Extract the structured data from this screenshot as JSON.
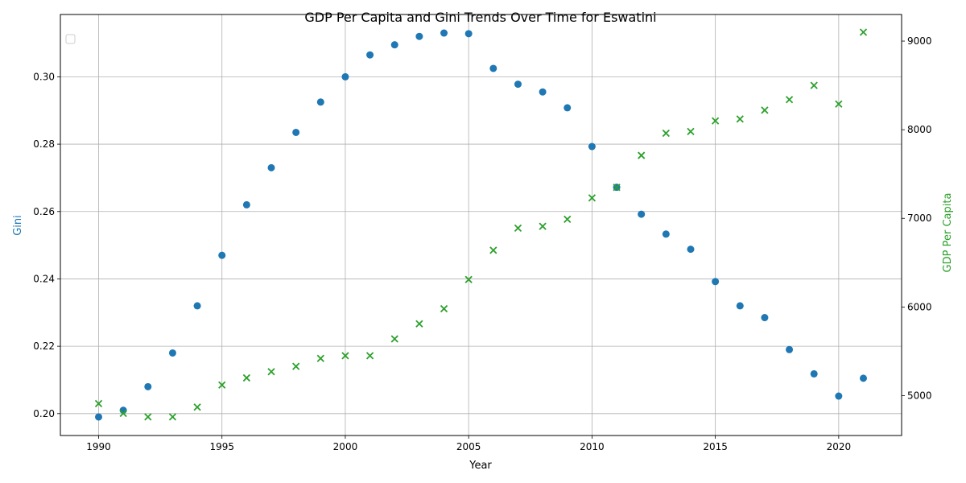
{
  "chart_data": {
    "type": "scatter",
    "title": "GDP Per Capita and Gini Trends Over Time for Eswatini",
    "xlabel": "Year",
    "ylabel_left": "Gini",
    "ylabel_right": "GDP Per Capita",
    "xlim": [
      1988.45,
      1992.55
    ],
    "xticks": [
      1990,
      1995,
      2000,
      2005,
      2010,
      2015,
      2020
    ],
    "ylim_left": [
      0.1935,
      0.3185
    ],
    "yticks_left": [
      "0.20",
      "0.22",
      "0.24",
      "0.26",
      "0.28",
      "0.30"
    ],
    "ylim_right": [
      4550,
      9300
    ],
    "yticks_right": [
      5000,
      6000,
      7000,
      8000,
      9000
    ],
    "grid": true,
    "legend": "top-left",
    "colors": {
      "gini": "#1f77b4",
      "gdp": "#2ca02c"
    },
    "x": [
      1990,
      1991,
      1992,
      1993,
      1994,
      1995,
      1996,
      1997,
      1998,
      1999,
      2000,
      2001,
      2002,
      2003,
      2004,
      2005,
      2006,
      2007,
      2008,
      2009,
      2010,
      2011,
      2012,
      2013,
      2014,
      2015,
      2016,
      2017,
      2018,
      2019,
      2020,
      2021
    ],
    "series": [
      {
        "key": "gini",
        "axis": "left",
        "marker": "circle",
        "values": [
          0.199,
          0.201,
          0.208,
          0.218,
          0.232,
          0.247,
          0.262,
          0.273,
          0.2835,
          0.2925,
          0.3,
          0.3065,
          0.3095,
          0.312,
          0.313,
          0.3128,
          0.3025,
          0.2978,
          0.2955,
          0.2908,
          0.2793,
          0.2672,
          0.2592,
          0.2533,
          0.2488,
          0.2392,
          0.232,
          0.2285,
          0.219,
          0.2118,
          0.2052,
          0.2105
        ]
      },
      {
        "key": "gdp",
        "axis": "right",
        "marker": "x",
        "values": [
          4910,
          4800,
          4760,
          4760,
          4870,
          5120,
          5200,
          5270,
          5330,
          5420,
          5450,
          5450,
          5640,
          5810,
          5980,
          6310,
          6640,
          6890,
          6910,
          6990,
          7230,
          7350,
          7710,
          7960,
          7980,
          8100,
          8120,
          8220,
          8340,
          8500,
          8290,
          9100
        ]
      }
    ]
  }
}
